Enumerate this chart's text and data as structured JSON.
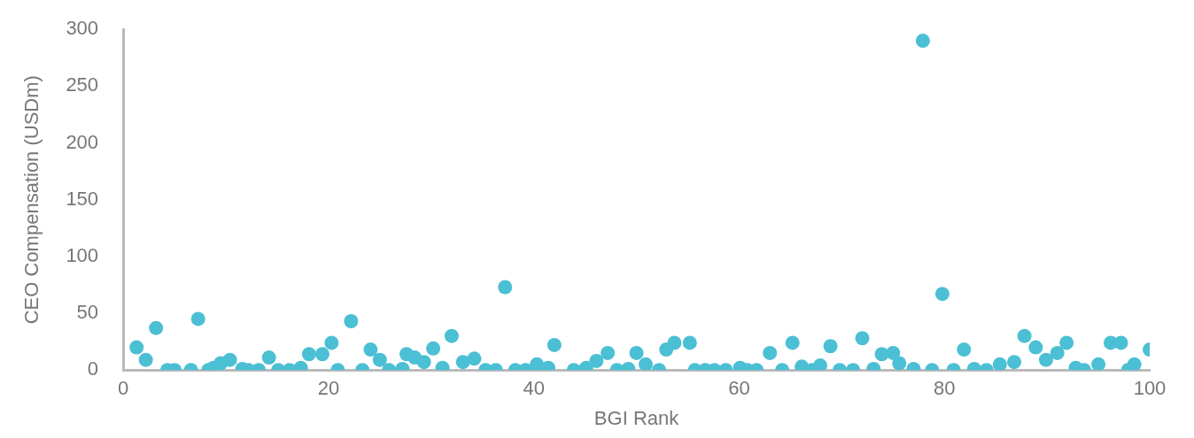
{
  "chart_data": {
    "type": "scatter",
    "xlabel": "BGI Rank",
    "ylabel": "CEO Compensation (USDm)",
    "x": [
      1.3,
      2.2,
      3.2,
      4.3,
      5.0,
      6.6,
      7.3,
      8.3,
      8.8,
      9.5,
      10.4,
      11.6,
      12.2,
      13.2,
      14.2,
      15.1,
      16.2,
      17.3,
      18.1,
      19.4,
      20.3,
      20.9,
      22.2,
      23.3,
      24.1,
      25.0,
      25.9,
      27.2,
      27.6,
      28.4,
      29.3,
      30.2,
      31.1,
      32.0,
      33.1,
      34.2,
      35.3,
      36.3,
      37.2,
      38.2,
      39.2,
      40.3,
      41.4,
      42.0,
      43.9,
      45.1,
      46.1,
      47.2,
      48.1,
      49.2,
      50.0,
      50.9,
      52.2,
      52.9,
      53.7,
      55.2,
      55.7,
      56.7,
      57.6,
      58.7,
      60.1,
      60.8,
      61.7,
      63.0,
      64.2,
      65.2,
      66.1,
      67.1,
      67.9,
      68.9,
      69.8,
      71.1,
      72.0,
      73.1,
      73.9,
      75.0,
      75.6,
      77.0,
      77.9,
      78.8,
      79.8,
      80.9,
      81.9,
      82.9,
      84.1,
      85.4,
      86.8,
      87.8,
      88.9,
      89.9,
      91.0,
      91.9,
      92.8,
      93.6,
      95.0,
      96.2,
      97.2,
      97.9,
      98.5,
      100.0
    ],
    "series": [
      {
        "color": "#4bbfd4",
        "values": [
          20,
          9,
          37,
          0,
          0,
          0,
          45,
          0,
          2,
          6,
          9,
          1,
          0,
          0,
          11,
          0,
          0,
          2,
          14,
          14,
          24,
          0,
          43,
          0,
          18,
          9,
          0,
          1,
          14,
          11,
          7,
          19,
          2,
          30,
          7,
          10,
          0,
          0,
          73,
          0,
          0,
          5,
          2,
          22,
          0,
          2,
          8,
          15,
          0,
          1,
          15,
          5,
          0,
          18,
          24,
          24,
          0,
          0,
          0,
          0,
          2,
          0,
          0,
          15,
          0,
          24,
          3,
          0,
          4,
          21,
          0,
          0,
          28,
          1,
          14,
          15,
          6,
          1,
          290,
          0,
          67,
          0,
          18,
          1,
          0,
          5,
          7,
          30,
          20,
          9,
          15,
          24,
          2,
          0,
          5,
          24,
          24,
          0,
          5,
          18
        ]
      }
    ],
    "xlim": [
      0,
      100
    ],
    "xticks": [
      0,
      20,
      40,
      60,
      80,
      100
    ],
    "ylim": [
      0,
      300
    ],
    "yticks": [
      0,
      50,
      100,
      150,
      200,
      250,
      300
    ],
    "grid": false,
    "marker": "circle",
    "legend": false
  }
}
